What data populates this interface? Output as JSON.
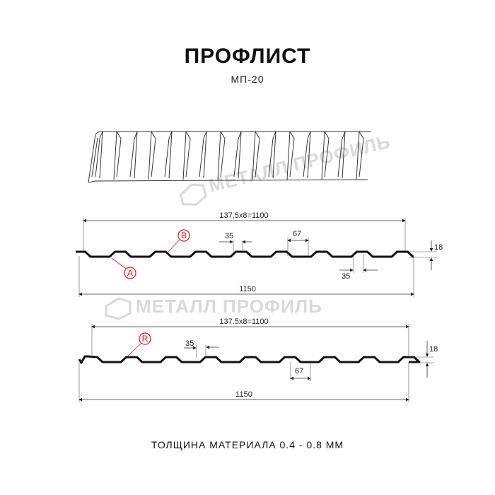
{
  "title": "ПРОФЛИСТ",
  "subtitle": "МП-20",
  "watermark": "МЕТАЛЛ ПРОФИЛЬ",
  "profile1": {
    "pitch_label": "137,5x8=1100",
    "total_label": "1150",
    "top_width_label": "35",
    "bottom_width_label": "67",
    "bottom_flat_label": "35",
    "height_label": "18",
    "callout_a": "A",
    "callout_b": "B"
  },
  "profile2": {
    "pitch_label": "137.5x8=1100",
    "total_label": "1150",
    "top_width_label": "35",
    "bottom_width_label": "67",
    "height_label": "18",
    "callout_r": "R"
  },
  "thickness": "ТОЛЩИНА МАТЕРИАЛА 0.4 - 0.8 ММ",
  "colors": {
    "line": "#111111",
    "callout": "#e11111",
    "watermark": "#d9d9d9"
  }
}
